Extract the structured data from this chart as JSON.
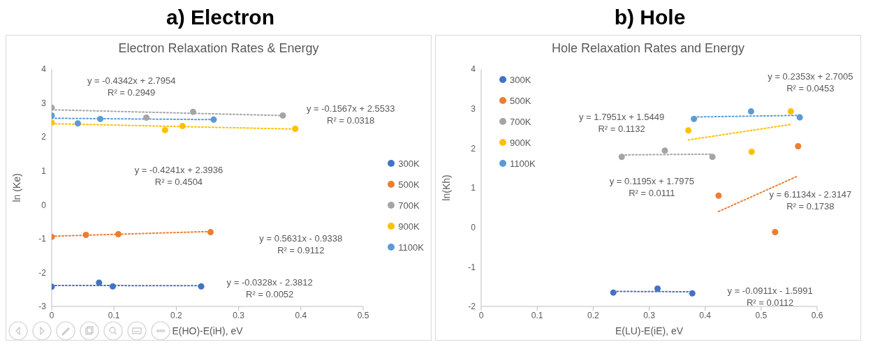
{
  "chart_data": [
    {
      "type": "scatter",
      "title": "a) Electron",
      "subtitle": "Electron Relaxation Rates & Energy",
      "xlabel": "E(HO)-E(iH), eV",
      "ylabel": "ln (Ke)",
      "xlim": [
        0,
        0.5
      ],
      "xticks": [
        0,
        0.1,
        0.2,
        0.3,
        0.4,
        0.5
      ],
      "ylim": [
        -3,
        4
      ],
      "yticks": [
        -3,
        -2,
        -1,
        0,
        1,
        2,
        3,
        4
      ],
      "legend": "right",
      "marker": "circle",
      "series": [
        {
          "name": "300K",
          "color": "#4472c4",
          "x": [
            0,
            0.076,
            0.098,
            0.24
          ],
          "values": [
            -2.42,
            -2.3,
            -2.41,
            -2.41
          ]
        },
        {
          "name": "500K",
          "color": "#ed7d31",
          "x": [
            0,
            0.055,
            0.107,
            0.255
          ],
          "values": [
            -0.95,
            -0.89,
            -0.87,
            -0.81
          ]
        },
        {
          "name": "700K",
          "color": "#a5a5a5",
          "x": [
            0,
            0.152,
            0.227,
            0.371
          ],
          "values": [
            2.86,
            2.57,
            2.74,
            2.63
          ]
        },
        {
          "name": "900K",
          "color": "#ffc000",
          "x": [
            0,
            0.182,
            0.21,
            0.391
          ],
          "values": [
            2.42,
            2.2,
            2.32,
            2.24
          ]
        },
        {
          "name": "1100K",
          "color": "#5b9bd5",
          "x": [
            0,
            0.042,
            0.078,
            0.26
          ],
          "values": [
            2.63,
            2.4,
            2.53,
            2.51
          ]
        },
        {
          "type": "line",
          "color": "#4472c4",
          "line_style": "dotted",
          "marker": "none",
          "x": [
            0,
            0.24
          ],
          "values": [
            -2.38,
            -2.39
          ]
        },
        {
          "type": "line",
          "color": "#ed7d31",
          "line_style": "dotted",
          "marker": "none",
          "x": [
            0,
            0.255
          ],
          "values": [
            -0.93,
            -0.79
          ]
        },
        {
          "type": "line",
          "color": "#a5a5a5",
          "line_style": "dotted",
          "marker": "none",
          "x": [
            0,
            0.371
          ],
          "values": [
            2.8,
            2.63
          ]
        },
        {
          "type": "line",
          "color": "#ffc000",
          "line_style": "dotted",
          "marker": "none",
          "x": [
            0,
            0.391
          ],
          "values": [
            2.39,
            2.23
          ]
        },
        {
          "type": "line",
          "color": "#5b9bd5",
          "line_style": "dotted",
          "marker": "none",
          "x": [
            0,
            0.26
          ],
          "values": [
            2.55,
            2.51
          ]
        }
      ],
      "annotations": [
        "y = -0.4342x + 2.7954\nR² = 0.2949",
        "y = -0.1567x + 2.5533\nR² = 0.0318",
        "y = -0.4241x + 2.3936\nR² = 0.4504",
        "y = 0.5631x - 0.9338\nR² = 0.9112",
        "y = -0.0328x - 2.3812\nR² = 0.0052"
      ]
    },
    {
      "type": "scatter",
      "title": "b) Hole",
      "subtitle": "Hole Relaxation Rates and Energy",
      "xlabel": "E(LU)-E(iE), eV",
      "ylabel": "ln(Kh)",
      "xlim": [
        0,
        0.6
      ],
      "xticks": [
        0,
        0.1,
        0.2,
        0.3,
        0.4,
        0.5,
        0.6
      ],
      "ylim": [
        -2,
        4
      ],
      "yticks": [
        -2,
        -1,
        0,
        1,
        2,
        3,
        4
      ],
      "legend": "top left",
      "marker": "circle",
      "series": [
        {
          "name": "300K",
          "color": "#4472c4",
          "x": [
            0.236,
            0.315,
            0.377
          ],
          "values": [
            -1.65,
            -1.55,
            -1.67
          ]
        },
        {
          "name": "500K",
          "color": "#ed7d31",
          "x": [
            0.424,
            0.525,
            0.566
          ],
          "values": [
            0.8,
            -0.12,
            2.05
          ]
        },
        {
          "name": "700K",
          "color": "#a5a5a5",
          "x": [
            0.251,
            0.328,
            0.413
          ],
          "values": [
            1.78,
            1.94,
            1.78
          ]
        },
        {
          "name": "900K",
          "color": "#ffc000",
          "x": [
            0.37,
            0.483,
            0.553
          ],
          "values": [
            2.45,
            1.91,
            2.93
          ]
        },
        {
          "name": "1100K",
          "color": "#5b9bd5",
          "x": [
            0.38,
            0.482,
            0.569
          ],
          "values": [
            2.74,
            2.93,
            2.78
          ]
        },
        {
          "type": "line",
          "color": "#4472c4",
          "line_style": "dotted",
          "marker": "none",
          "x": [
            0.236,
            0.377
          ],
          "values": [
            -1.62,
            -1.63
          ]
        },
        {
          "type": "line",
          "color": "#ed7d31",
          "line_style": "dotted",
          "marker": "none",
          "x": [
            0.424,
            0.566
          ],
          "values": [
            0.4,
            1.3
          ]
        },
        {
          "type": "line",
          "color": "#a5a5a5",
          "line_style": "dotted",
          "marker": "none",
          "x": [
            0.251,
            0.413
          ],
          "values": [
            1.83,
            1.85
          ]
        },
        {
          "type": "line",
          "color": "#ffc000",
          "line_style": "dotted",
          "marker": "none",
          "x": [
            0.37,
            0.553
          ],
          "values": [
            2.21,
            2.6
          ]
        },
        {
          "type": "line",
          "color": "#5b9bd5",
          "line_style": "dotted",
          "marker": "none",
          "x": [
            0.38,
            0.569
          ],
          "values": [
            2.79,
            2.83
          ]
        }
      ],
      "annotations": [
        "y = 0.2353x + 2.7005\nR² = 0.0453",
        "y = 1.7951x + 1.5449\nR² = 0.1132",
        "y = 0.1195x + 1.7975\nR² = 0.0111",
        "y = 6.1134x - 2.3147\nR² = 0.1738",
        "y = -0.0911x - 1.5991\nR² = 0.0112"
      ]
    }
  ]
}
